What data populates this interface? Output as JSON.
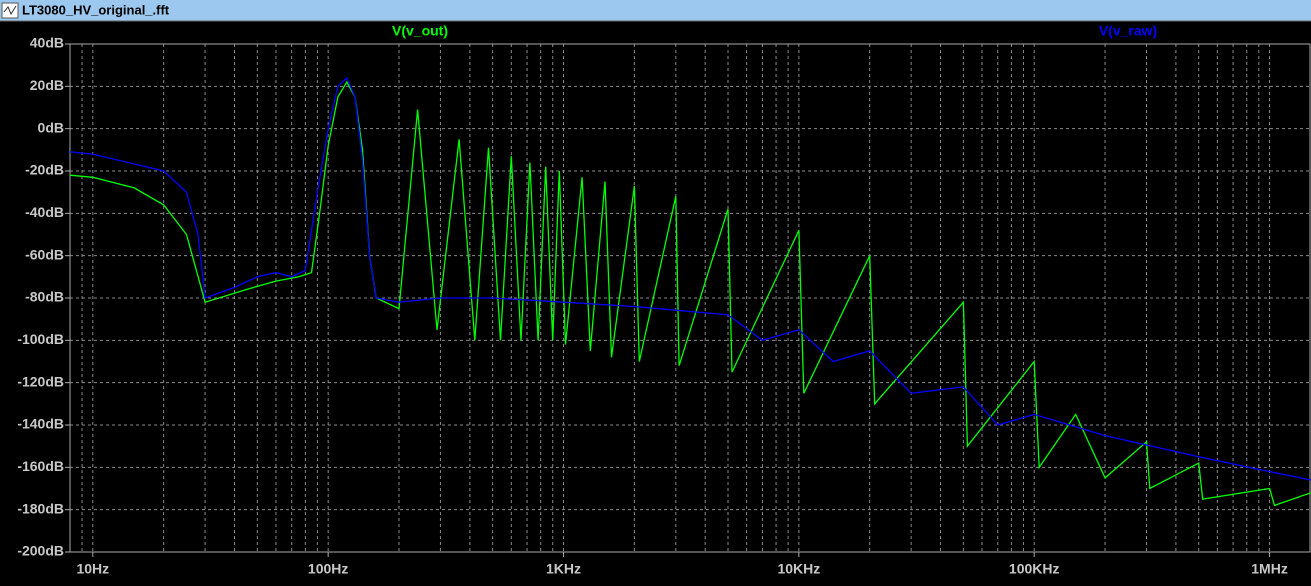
{
  "window": {
    "title": "LT3080_HV_original_.fft"
  },
  "chart_data": {
    "type": "line",
    "xlog": true,
    "log_minor_grid": true,
    "grid": true,
    "xlim": [
      8,
      1500000
    ],
    "ylim": [
      -200,
      40
    ],
    "xticks": [
      {
        "value": 10,
        "label": "10Hz"
      },
      {
        "value": 100,
        "label": "100Hz"
      },
      {
        "value": 1000,
        "label": "1KHz"
      },
      {
        "value": 10000,
        "label": "10KHz"
      },
      {
        "value": 100000,
        "label": "100KHz"
      },
      {
        "value": 1000000,
        "label": "1MHz"
      }
    ],
    "yticks": [
      {
        "value": 40,
        "label": "40dB"
      },
      {
        "value": 20,
        "label": "20dB"
      },
      {
        "value": 0,
        "label": "0dB"
      },
      {
        "value": -20,
        "label": "-20dB"
      },
      {
        "value": -40,
        "label": "-40dB"
      },
      {
        "value": -60,
        "label": "-60dB"
      },
      {
        "value": -80,
        "label": "-80dB"
      },
      {
        "value": -100,
        "label": "-100dB"
      },
      {
        "value": -120,
        "label": "-120dB"
      },
      {
        "value": -140,
        "label": "-140dB"
      },
      {
        "value": -160,
        "label": "-160dB"
      },
      {
        "value": -180,
        "label": "-180dB"
      },
      {
        "value": -200,
        "label": "-200dB"
      }
    ],
    "series": [
      {
        "name": "V(v_out)",
        "color": "#00ff00",
        "x": [
          8,
          10,
          15,
          20,
          25,
          30,
          45,
          60,
          75,
          85,
          92,
          100,
          110,
          120,
          130,
          140,
          150,
          160,
          200,
          240,
          290,
          360,
          420,
          480,
          540,
          600,
          660,
          720,
          780,
          840,
          900,
          960,
          1020,
          1200,
          1300,
          1500,
          1600,
          2000,
          2100,
          3000,
          3100,
          5000,
          5200,
          10000,
          10500,
          20000,
          21000,
          50000,
          52000,
          100000,
          105000,
          150000,
          200000,
          300000,
          310000,
          500000,
          520000,
          1000000,
          1050000,
          1500000
        ],
        "values": [
          -22,
          -23,
          -28,
          -36,
          -50,
          -82,
          -76,
          -72,
          -70,
          -68,
          -40,
          -8,
          15,
          22,
          15,
          -10,
          -60,
          -80,
          -85,
          9,
          -95,
          -5,
          -100,
          -9,
          -100,
          -13,
          -100,
          -16,
          -100,
          -18,
          -100,
          -20,
          -102,
          -23,
          -105,
          -25,
          -108,
          -27,
          -110,
          -32,
          -112,
          -38,
          -115,
          -48,
          -125,
          -60,
          -130,
          -82,
          -150,
          -110,
          -160,
          -135,
          -165,
          -148,
          -170,
          -158,
          -175,
          -170,
          -178,
          -172
        ]
      },
      {
        "name": "V(v_raw)",
        "color": "#0000ff",
        "x": [
          8,
          10,
          20,
          25,
          28,
          30,
          40,
          50,
          60,
          70,
          80,
          90,
          100,
          110,
          120,
          130,
          140,
          150,
          160,
          200,
          300,
          500,
          1000,
          2000,
          5000,
          7000,
          10000,
          14000,
          20000,
          30000,
          50000,
          70000,
          100000,
          200000,
          500000,
          1000000,
          1500000
        ],
        "values": [
          -11,
          -12,
          -20,
          -30,
          -50,
          -80,
          -75,
          -70,
          -68,
          -70,
          -67,
          -30,
          0,
          20,
          24,
          15,
          -15,
          -60,
          -80,
          -82,
          -80,
          -80,
          -82,
          -84,
          -88,
          -100,
          -95,
          -110,
          -105,
          -125,
          -122,
          -140,
          -135,
          -145,
          -155,
          -162,
          -166
        ]
      }
    ]
  }
}
